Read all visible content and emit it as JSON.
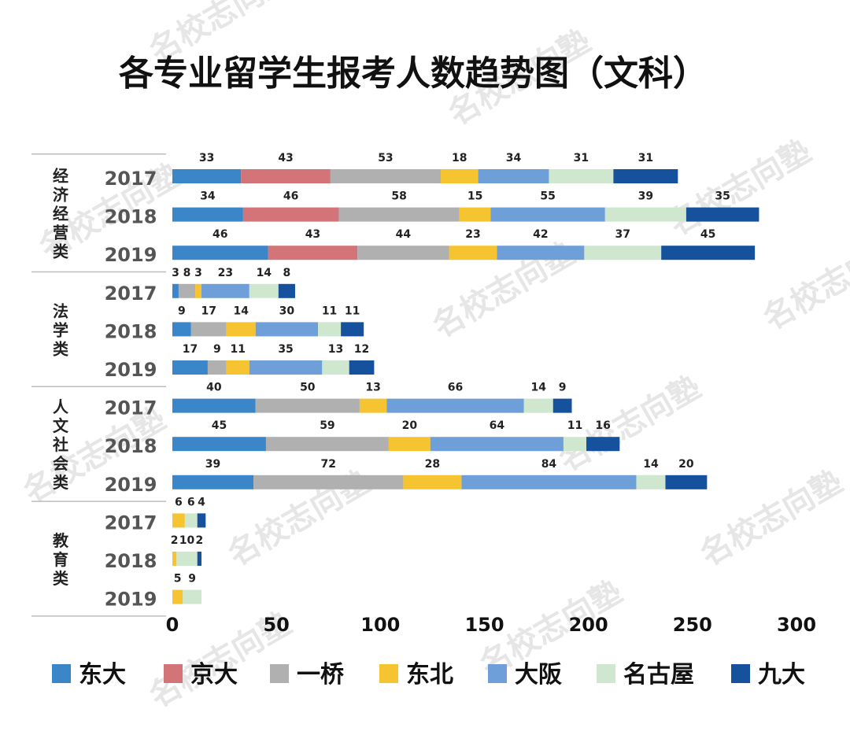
{
  "chart_data": {
    "type": "bar",
    "orientation": "horizontal",
    "stacked": true,
    "title": "各专业留学生报考人数趋势图（文科）",
    "xlabel": "",
    "ylabel": "",
    "xlim": [
      0,
      300
    ],
    "x_ticks": [
      "0",
      "50",
      "100",
      "150",
      "200",
      "250",
      "300"
    ],
    "legend_position": "bottom",
    "watermark": "名校志向塾",
    "series": [
      {
        "name": "东大",
        "color": "#3b86c8"
      },
      {
        "name": "京大",
        "color": "#d27478"
      },
      {
        "name": "一桥",
        "color": "#b0b0b0"
      },
      {
        "name": "东北",
        "color": "#f6c431"
      },
      {
        "name": "大阪",
        "color": "#6f9fd8"
      },
      {
        "name": "名古屋",
        "color": "#cfe7cf"
      },
      {
        "name": "九大",
        "color": "#16519d"
      }
    ],
    "groups": [
      {
        "name": "经济经营类",
        "rows": [
          {
            "year": "2017",
            "values": [
              33,
              43,
              53,
              18,
              34,
              31,
              31
            ]
          },
          {
            "year": "2018",
            "values": [
              34,
              46,
              58,
              15,
              55,
              39,
              35
            ]
          },
          {
            "year": "2019",
            "values": [
              46,
              43,
              44,
              23,
              42,
              37,
              45
            ]
          }
        ]
      },
      {
        "name": "法学类",
        "rows": [
          {
            "year": "2017",
            "values": [
              3,
              null,
              8,
              3,
              23,
              14,
              8
            ]
          },
          {
            "year": "2018",
            "values": [
              9,
              null,
              17,
              14,
              30,
              11,
              11
            ]
          },
          {
            "year": "2019",
            "values": [
              17,
              null,
              9,
              11,
              35,
              13,
              12
            ]
          }
        ]
      },
      {
        "name": "人文社会类",
        "rows": [
          {
            "year": "2017",
            "values": [
              40,
              null,
              50,
              13,
              66,
              14,
              9
            ]
          },
          {
            "year": "2018",
            "values": [
              45,
              null,
              59,
              20,
              64,
              11,
              16
            ]
          },
          {
            "year": "2019",
            "values": [
              39,
              null,
              72,
              28,
              84,
              14,
              20
            ]
          }
        ]
      },
      {
        "name": "教育类",
        "rows": [
          {
            "year": "2017",
            "values": [
              null,
              null,
              null,
              6,
              null,
              6,
              4
            ]
          },
          {
            "year": "2018",
            "values": [
              null,
              null,
              null,
              2,
              null,
              10,
              2
            ]
          },
          {
            "year": "2019",
            "values": [
              null,
              null,
              null,
              5,
              null,
              9,
              null
            ]
          }
        ]
      }
    ]
  }
}
